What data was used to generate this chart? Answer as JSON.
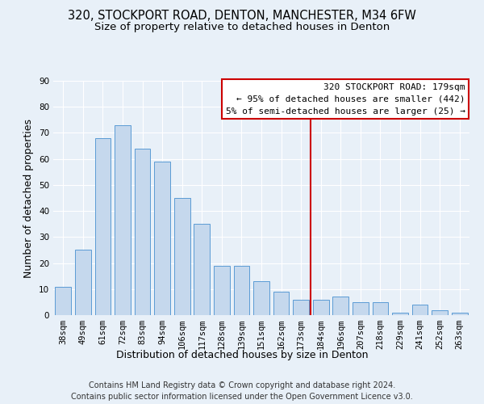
{
  "title": "320, STOCKPORT ROAD, DENTON, MANCHESTER, M34 6FW",
  "subtitle": "Size of property relative to detached houses in Denton",
  "xlabel": "Distribution of detached houses by size in Denton",
  "ylabel": "Number of detached properties",
  "categories": [
    "38sqm",
    "49sqm",
    "61sqm",
    "72sqm",
    "83sqm",
    "94sqm",
    "106sqm",
    "117sqm",
    "128sqm",
    "139sqm",
    "151sqm",
    "162sqm",
    "173sqm",
    "184sqm",
    "196sqm",
    "207sqm",
    "218sqm",
    "229sqm",
    "241sqm",
    "252sqm",
    "263sqm"
  ],
  "values": [
    11,
    25,
    68,
    73,
    64,
    59,
    45,
    35,
    19,
    19,
    13,
    9,
    6,
    6,
    7,
    5,
    5,
    1,
    4,
    2,
    1
  ],
  "bar_color": "#c5d8ed",
  "bar_edge_color": "#5b9bd5",
  "vline_x_index": 13,
  "vline_color": "#cc0000",
  "box_text_line1": "320 STOCKPORT ROAD: 179sqm",
  "box_text_line2": "← 95% of detached houses are smaller (442)",
  "box_text_line3": "5% of semi-detached houses are larger (25) →",
  "box_color": "#cc0000",
  "box_fill": "#ffffff",
  "ylim": [
    0,
    90
  ],
  "yticks": [
    0,
    10,
    20,
    30,
    40,
    50,
    60,
    70,
    80,
    90
  ],
  "footer_line1": "Contains HM Land Registry data © Crown copyright and database right 2024.",
  "footer_line2": "Contains public sector information licensed under the Open Government Licence v3.0.",
  "bg_color": "#e8f0f8",
  "plot_bg_color": "#e8f0f8",
  "title_fontsize": 10.5,
  "subtitle_fontsize": 9.5,
  "axis_label_fontsize": 9,
  "tick_fontsize": 7.5,
  "footer_fontsize": 7
}
